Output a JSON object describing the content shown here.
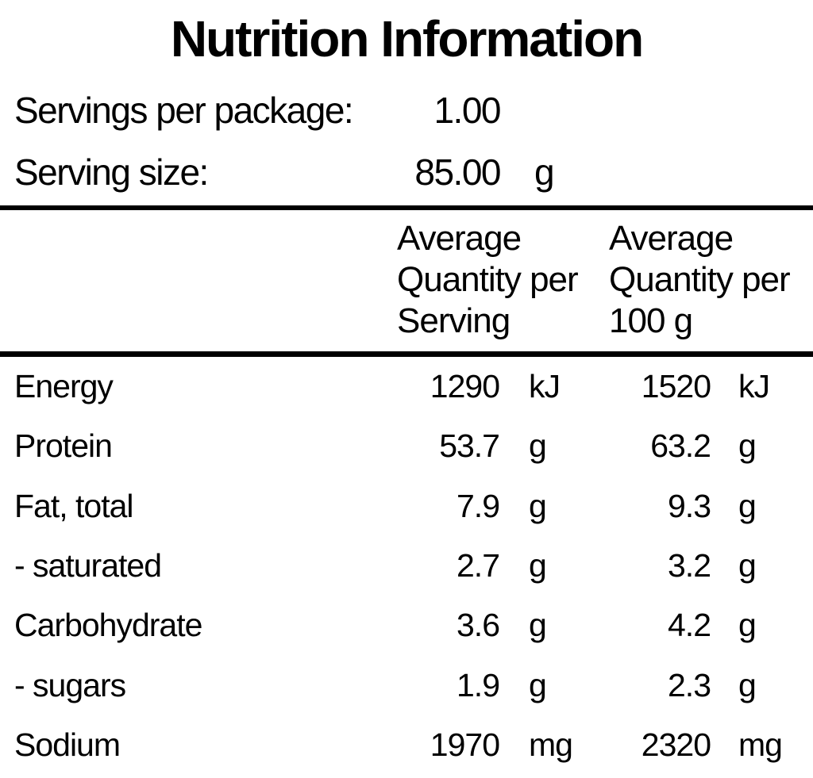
{
  "title": "Nutrition Information",
  "package_info": {
    "rows": [
      {
        "label": "Servings per package:",
        "value": "1.00",
        "unit": ""
      },
      {
        "label": "Serving size:",
        "value": "85.00",
        "unit": "g"
      }
    ]
  },
  "table": {
    "column_headers": [
      "",
      "Average Quantity per Serving",
      "Average Quantity per 100 g"
    ],
    "rows": [
      {
        "nutrient": "Energy",
        "per_serving": "1290",
        "per_serving_unit": "kJ",
        "per_100g": "1520",
        "per_100g_unit": "kJ"
      },
      {
        "nutrient": "Protein",
        "per_serving": "53.7",
        "per_serving_unit": "g",
        "per_100g": "63.2",
        "per_100g_unit": "g"
      },
      {
        "nutrient": "Fat, total",
        "per_serving": "7.9",
        "per_serving_unit": "g",
        "per_100g": "9.3",
        "per_100g_unit": "g"
      },
      {
        "nutrient": "- saturated",
        "per_serving": "2.7",
        "per_serving_unit": "g",
        "per_100g": "3.2",
        "per_100g_unit": "g"
      },
      {
        "nutrient": "Carbohydrate",
        "per_serving": "3.6",
        "per_serving_unit": "g",
        "per_100g": "4.2",
        "per_100g_unit": "g"
      },
      {
        "nutrient": "- sugars",
        "per_serving": "1.9",
        "per_serving_unit": "g",
        "per_100g": "2.3",
        "per_100g_unit": "g"
      },
      {
        "nutrient": "Sodium",
        "per_serving": "1970",
        "per_serving_unit": "mg",
        "per_100g": "2320",
        "per_100g_unit": "mg"
      }
    ]
  },
  "colors": {
    "text": "#000000",
    "background": "#ffffff",
    "rule": "#000000"
  }
}
